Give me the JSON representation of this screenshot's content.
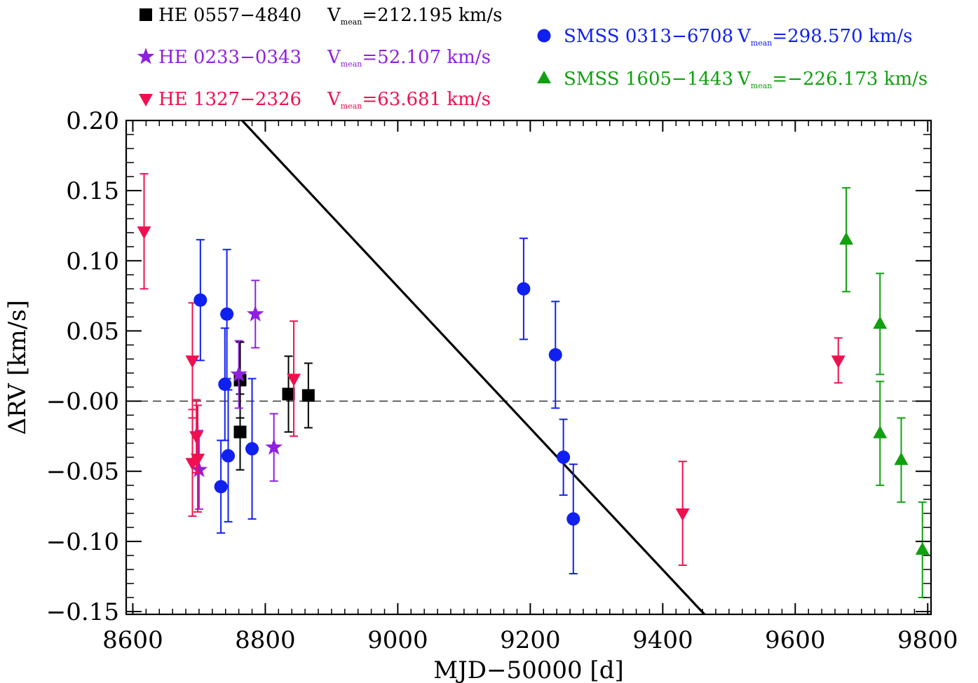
{
  "chart_data": {
    "type": "scatter",
    "title": "",
    "xlabel": "MJD−50000 [d]",
    "ylabel": "ΔRV [km/s]",
    "xlim": [
      8590,
      9805
    ],
    "ylim": [
      -0.152,
      0.2
    ],
    "grid": false,
    "x_ticks": [
      8600,
      8800,
      9000,
      9200,
      9400,
      9600,
      9800
    ],
    "x_tick_labels": [
      "8600",
      "8800",
      "9000",
      "9200",
      "9400",
      "9600",
      "9800"
    ],
    "y_ticks": [
      0.2,
      0.15,
      0.1,
      0.05,
      0.0,
      -0.05,
      -0.1,
      -0.15
    ],
    "y_tick_labels": [
      "0.20",
      "0.15",
      "0.10",
      "0.05",
      "−0.00",
      "−0.05",
      "−0.10",
      "−0.15"
    ],
    "reference_line": {
      "y": 0.0,
      "style": "dashed"
    },
    "trend_line": {
      "x": [
        8765,
        9463
      ],
      "y": [
        0.2,
        -0.152
      ]
    },
    "series": [
      {
        "name": "HE 0557−4840",
        "vmean_label": "=212.195 km/s",
        "marker": "square",
        "color": "#000000",
        "points": [
          {
            "x": 8762,
            "y": 0.015,
            "err": 0.027
          },
          {
            "x": 8762,
            "y": -0.022,
            "err": 0.027
          },
          {
            "x": 8835,
            "y": 0.005,
            "err": 0.027
          },
          {
            "x": 8865,
            "y": 0.004,
            "err": 0.023
          }
        ]
      },
      {
        "name": "HE 0233−0343",
        "vmean_label": "=52.107 km/s",
        "marker": "star",
        "color": "#9020E0",
        "points": [
          {
            "x": 8700,
            "y": -0.049,
            "err": 0.028
          },
          {
            "x": 8760,
            "y": 0.019,
            "err": 0.024
          },
          {
            "x": 8785,
            "y": 0.062,
            "err": 0.024
          },
          {
            "x": 8813,
            "y": -0.033,
            "err": 0.024
          }
        ]
      },
      {
        "name": "HE 1327−2326",
        "vmean_label": "=63.681 km/s",
        "marker": "triangle-down",
        "color": "#F0104F",
        "points": [
          {
            "x": 8617,
            "y": 0.121,
            "err": 0.041
          },
          {
            "x": 8690,
            "y": 0.029,
            "err": 0.041
          },
          {
            "x": 8690,
            "y": -0.044,
            "err": 0.038
          },
          {
            "x": 8696,
            "y": -0.025,
            "err": 0.026
          },
          {
            "x": 8698,
            "y": -0.041,
            "err": 0.038
          },
          {
            "x": 8843,
            "y": 0.016,
            "err": 0.041
          },
          {
            "x": 9430,
            "y": -0.08,
            "err": 0.037
          },
          {
            "x": 9665,
            "y": 0.029,
            "err": 0.016
          }
        ]
      },
      {
        "name": "SMSS 0313−6708",
        "vmean_label": "=298.570 km/s",
        "marker": "circle",
        "color": "#1020F0",
        "points": [
          {
            "x": 8702,
            "y": 0.072,
            "err": 0.043
          },
          {
            "x": 8733,
            "y": -0.061,
            "err": 0.033
          },
          {
            "x": 8739,
            "y": 0.012,
            "err": 0.04
          },
          {
            "x": 8742,
            "y": 0.062,
            "err": 0.046
          },
          {
            "x": 8744,
            "y": -0.039,
            "err": 0.047
          },
          {
            "x": 8780,
            "y": -0.034,
            "err": 0.05
          },
          {
            "x": 9190,
            "y": 0.08,
            "err": 0.036
          },
          {
            "x": 9238,
            "y": 0.033,
            "err": 0.038
          },
          {
            "x": 9250,
            "y": -0.04,
            "err": 0.027
          },
          {
            "x": 9265,
            "y": -0.084,
            "err": 0.039
          }
        ]
      },
      {
        "name": "SMSS 1605−1443",
        "vmean_label": "=−226.173 km/s",
        "marker": "triangle-up",
        "color": "#10A010",
        "points": [
          {
            "x": 9677,
            "y": 0.115,
            "err": 0.037
          },
          {
            "x": 9728,
            "y": 0.055,
            "err": 0.036
          },
          {
            "x": 9728,
            "y": -0.023,
            "err": 0.037
          },
          {
            "x": 9760,
            "y": -0.042,
            "err": 0.03
          },
          {
            "x": 9792,
            "y": -0.106,
            "err": 0.034
          }
        ]
      }
    ],
    "legend": {
      "v_prefix": "V",
      "v_subscript": "mean"
    }
  }
}
